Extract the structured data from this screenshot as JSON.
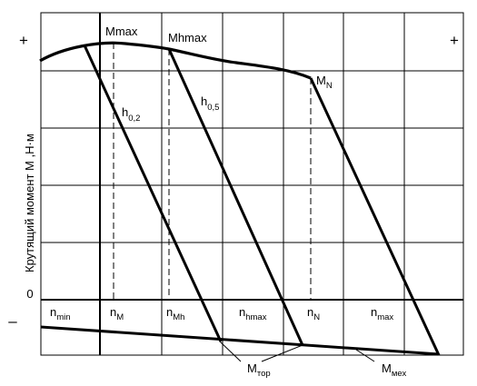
{
  "axes": {
    "y_label": "Крутящий момент  М  ,Н·м",
    "plus_sign": "+",
    "minus_sign": "–",
    "zero_label": "0"
  },
  "point_labels": {
    "mmax": "Mmax",
    "mhmax": "Mhmax",
    "mn": {
      "main": "M",
      "sub": "N"
    }
  },
  "curve_labels": {
    "h02": {
      "main": "h",
      "sub": "0,2"
    },
    "h05": {
      "main": "h",
      "sub": "0,5"
    }
  },
  "speed_labels": {
    "n_min": {
      "main": "n",
      "sub": "min"
    },
    "n_m": {
      "main": "n",
      "sub": "M"
    },
    "n_mh": {
      "main": "n",
      "sub": "Mh"
    },
    "n_hmax": {
      "main": "n",
      "sub": "hmax"
    },
    "n_n": {
      "main": "n",
      "sub": "N"
    },
    "n_max": {
      "main": "n",
      "sub": "max"
    }
  },
  "callouts": {
    "m_top": {
      "main": "M",
      "sub": "тор"
    },
    "m_mex": {
      "main": "M",
      "sub": "мех"
    }
  }
}
